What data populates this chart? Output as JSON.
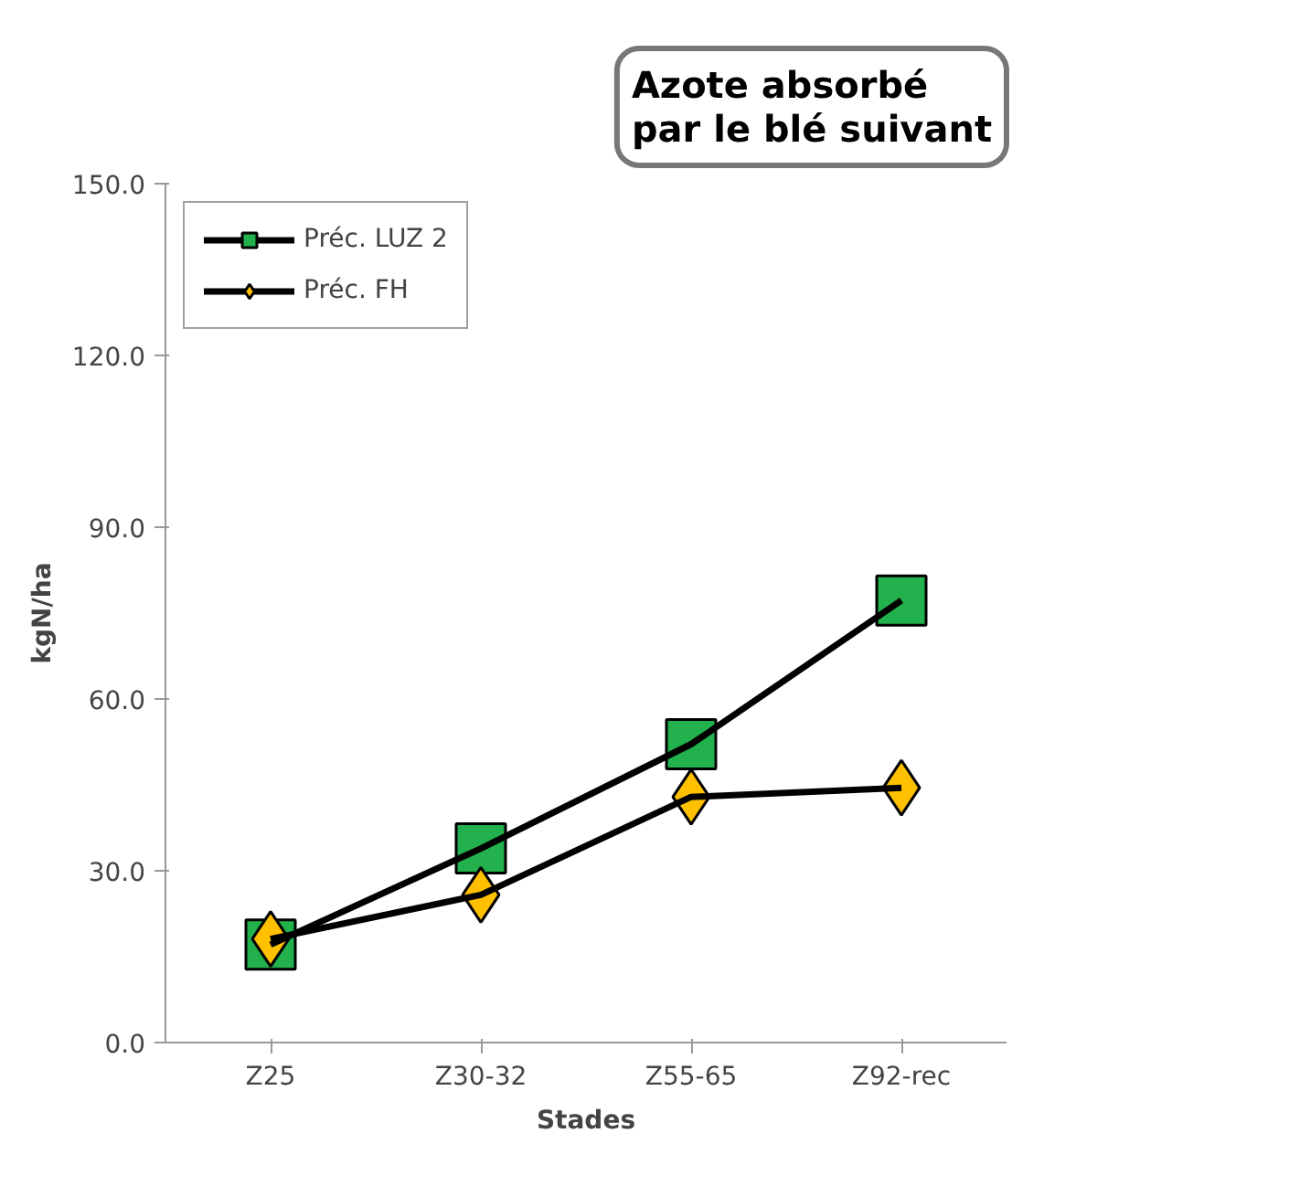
{
  "chart_data": {
    "type": "line",
    "title": "Azote absorbé par le blé suivant",
    "xlabel": "Stades",
    "ylabel": "kgN/ha",
    "categories": [
      "Z25",
      "Z30-32",
      "Z55-65",
      "Z92-rec"
    ],
    "series": [
      {
        "name": "Préc. LUZ 2",
        "color": "#22b14c",
        "marker": "square",
        "values": [
          17.1,
          33.9,
          52.1,
          77.2
        ]
      },
      {
        "name": "Préc. FH",
        "color": "#ffc000",
        "marker": "diamond",
        "values": [
          18.1,
          25.8,
          42.9,
          44.5
        ]
      }
    ],
    "ylim": [
      0,
      150
    ],
    "yticks": [
      {
        "value": 0,
        "label": "0.0"
      },
      {
        "value": 30,
        "label": "30.0"
      },
      {
        "value": 60,
        "label": "60.0"
      },
      {
        "value": 90,
        "label": "90.0"
      },
      {
        "value": 120,
        "label": "120.0"
      },
      {
        "value": 150,
        "label": "150.0"
      }
    ],
    "grid": false,
    "legend": "top left",
    "line_style": "solid"
  }
}
